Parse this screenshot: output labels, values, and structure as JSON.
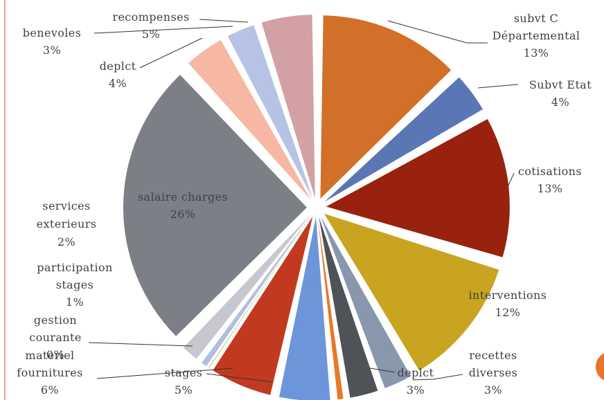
{
  "chart_data": {
    "type": "pie",
    "title": "",
    "legend": "none",
    "start_angle_deg": 0,
    "direction": "clockwise",
    "slices": [
      {
        "value": 13,
        "color": "#D2702A",
        "explode": 1.0,
        "label": [
          "subvt C",
          "Départemental",
          "13%"
        ]
      },
      {
        "value": 4,
        "color": "#5A76B5",
        "explode": 1.0,
        "label": [
          "Subvt Etat",
          "4%"
        ]
      },
      {
        "value": 13,
        "color": "#98220E",
        "explode": 1.0,
        "label": [
          "cotisations",
          "13%"
        ]
      },
      {
        "value": 12,
        "color": "#C9A420",
        "explode": 1.0,
        "label": [
          "interventions",
          "12%"
        ]
      },
      {
        "value": 3,
        "color": "#8896AE",
        "explode": 1.0,
        "label": [
          "recettes",
          "diverses",
          "3%"
        ]
      },
      {
        "value": 3,
        "color": "#4F5257",
        "explode": 1.0,
        "label": [
          "deplct",
          "3%"
        ]
      },
      {
        "value": 1,
        "color": "#E8782A",
        "explode": 1.0,
        "label": []
      },
      {
        "value": 5,
        "color": "#6D95DA",
        "explode": 1.0,
        "label": [
          "stages",
          "5%"
        ]
      },
      {
        "value": 6,
        "color": "#C13A1F",
        "explode": 1.0,
        "label": [
          "materiel",
          "fournitures",
          "6%"
        ]
      },
      {
        "value": 0,
        "color": "#E9D9B5",
        "explode": 1.0,
        "label": [
          "gestion",
          "courante",
          "0%"
        ]
      },
      {
        "value": 1,
        "color": "#AFC0DD",
        "explode": 1.0,
        "label": [
          "participation",
          "stages",
          "1%"
        ]
      },
      {
        "value": 2,
        "color": "#C6C7CF",
        "explode": 1.0,
        "label": [
          "services",
          "exterieurs",
          "2%"
        ]
      },
      {
        "value": 26,
        "color": "#7C7F86",
        "explode": 1.0,
        "label": [
          "salaire charges",
          "26%"
        ]
      },
      {
        "value": 4,
        "color": "#F6B8A2",
        "explode": 1.0,
        "label": [
          "deplct",
          "4%"
        ]
      },
      {
        "value": 3,
        "color": "#B6C3E4",
        "explode": 1.0,
        "label": [
          "benevoles",
          "3%"
        ]
      },
      {
        "value": 5,
        "color": "#D3A0A3",
        "explode": 1.0,
        "label": [
          "recompenses",
          "5%"
        ]
      }
    ]
  }
}
